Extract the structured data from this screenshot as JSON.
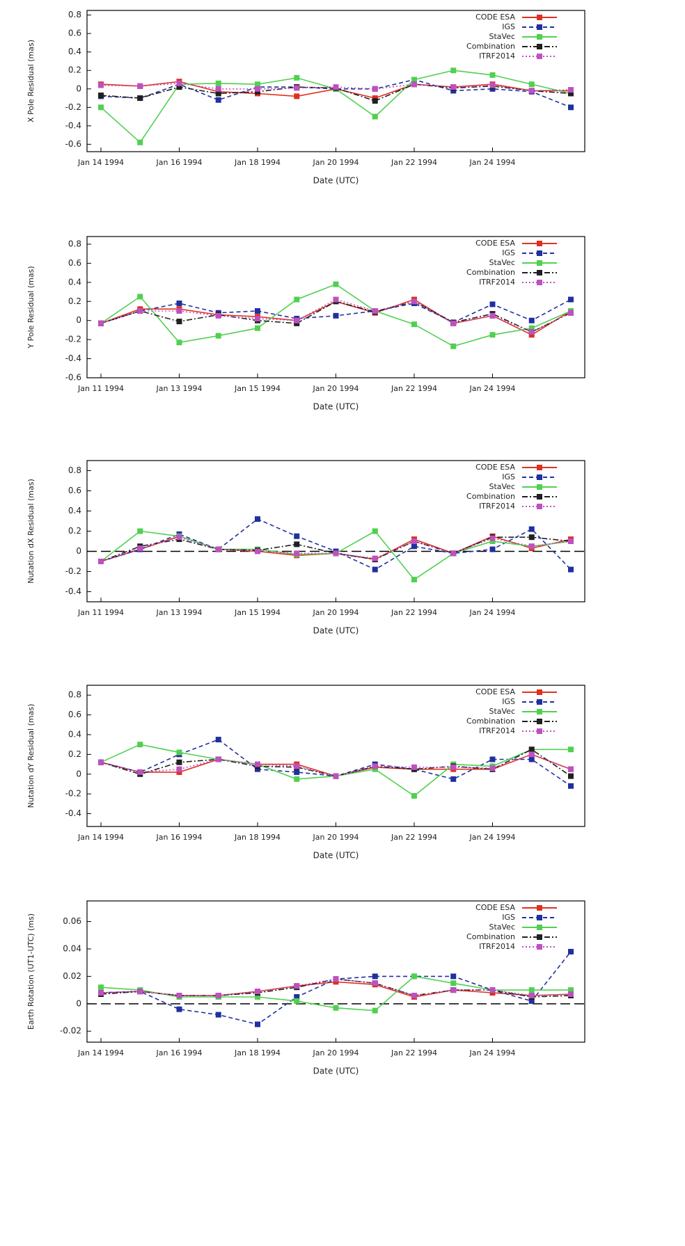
{
  "chart_data": [
    {
      "type": "line",
      "ylabel": "X Pole Residual (mas)",
      "xlabel": "Date (UTC)",
      "categories": [
        "Jan 14 1994",
        null,
        "Jan 16 1994",
        null,
        "Jan 18 1994",
        null,
        "Jan 20 1994",
        null,
        "Jan 22 1994",
        null,
        "Jan 24 1994",
        null,
        null
      ],
      "ylim": [
        -0.68,
        0.85
      ],
      "yticks": [
        -0.6,
        -0.4,
        -0.2,
        0,
        0.2,
        0.4,
        0.6,
        0.8
      ],
      "legend": "upper right",
      "zero_line": false,
      "series": [
        {
          "name": "CODE ESA",
          "color": "#e03020",
          "values": [
            0.05,
            0.03,
            0.08,
            -0.03,
            -0.05,
            -0.08,
            0,
            -0.1,
            0.05,
            0.02,
            0.05,
            -0.02,
            -0.02
          ]
        },
        {
          "name": "IGS",
          "color": "#2030a0",
          "values": [
            -0.08,
            -0.1,
            0.05,
            -0.12,
            0.02,
            0.02,
            0,
            0,
            0.1,
            -0.02,
            0,
            -0.03,
            -0.2
          ]
        },
        {
          "name": "StaVec",
          "color": "#50d050",
          "values": [
            -0.2,
            -0.58,
            0.05,
            0.06,
            0.05,
            0.12,
            0,
            -0.3,
            0.1,
            0.2,
            0.15,
            0.05,
            -0.05
          ]
        },
        {
          "name": "Combination",
          "color": "#202020",
          "values": [
            -0.07,
            -0.1,
            0.02,
            -0.05,
            -0.03,
            0.02,
            0.01,
            -0.13,
            0.05,
            0.01,
            0.03,
            -0.02,
            -0.05
          ]
        },
        {
          "name": "ITRF2014",
          "color": "#c050c0",
          "values": [
            0.04,
            0.03,
            0.06,
            0,
            0,
            0.01,
            0.02,
            0,
            0.05,
            0.02,
            0.04,
            -0.02,
            -0.01
          ]
        }
      ]
    },
    {
      "type": "line",
      "ylabel": "Y Pole Residual (mas)",
      "xlabel": "Date (UTC)",
      "categories": [
        "Jan 11 1994",
        null,
        "Jan 13 1994",
        null,
        "Jan 15 1994",
        null,
        "Jan 20 1994",
        null,
        "Jan 22 1994",
        null,
        "Jan 24 1994",
        null,
        null
      ],
      "ylim": [
        -0.6,
        0.88
      ],
      "yticks": [
        -0.6,
        -0.4,
        -0.2,
        0,
        0.2,
        0.4,
        0.6,
        0.8
      ],
      "legend": "upper right",
      "zero_line": false,
      "series": [
        {
          "name": "CODE ESA",
          "color": "#e03020",
          "values": [
            -0.03,
            0.12,
            0.12,
            0.06,
            0.04,
            0,
            0.2,
            0.08,
            0.22,
            -0.03,
            0.05,
            -0.15,
            0.1
          ]
        },
        {
          "name": "IGS",
          "color": "#2030a0",
          "values": [
            -0.03,
            0.1,
            0.18,
            0.08,
            0.1,
            0.02,
            0.05,
            0.1,
            0.18,
            -0.02,
            0.17,
            0,
            0.22
          ]
        },
        {
          "name": "StaVec",
          "color": "#50d050",
          "values": [
            -0.03,
            0.25,
            -0.23,
            -0.16,
            -0.08,
            0.22,
            0.38,
            0.1,
            -0.04,
            -0.27,
            -0.15,
            -0.08,
            0.1
          ]
        },
        {
          "name": "Combination",
          "color": "#202020",
          "values": [
            -0.03,
            0.1,
            -0.01,
            0.06,
            0,
            -0.03,
            0.2,
            0.09,
            0.2,
            -0.02,
            0.07,
            -0.12,
            0.08
          ]
        },
        {
          "name": "ITRF2014",
          "color": "#c050c0",
          "values": [
            -0.03,
            0.1,
            0.1,
            0.05,
            0.02,
            0,
            0.22,
            0.1,
            0.2,
            -0.03,
            0.05,
            -0.12,
            0.08
          ]
        }
      ]
    },
    {
      "type": "line",
      "ylabel": "Nutation dX Residual (mas)",
      "xlabel": "Date (UTC)",
      "categories": [
        "Jan 11 1994",
        null,
        "Jan 13 1994",
        null,
        "Jan 15 1994",
        null,
        "Jan 20 1994",
        null,
        "Jan 22 1994",
        null,
        "Jan 24 1994",
        null,
        null
      ],
      "ylim": [
        -0.5,
        0.9
      ],
      "yticks": [
        -0.4,
        -0.2,
        0,
        0.2,
        0.4,
        0.6,
        0.8
      ],
      "legend": "upper right",
      "zero_line": true,
      "series": [
        {
          "name": "CODE ESA",
          "color": "#e03020",
          "values": [
            -0.1,
            0.02,
            0.15,
            0.02,
            0,
            -0.04,
            -0.02,
            -0.08,
            0.12,
            -0.02,
            0.15,
            0.03,
            0.12
          ]
        },
        {
          "name": "IGS",
          "color": "#2030a0",
          "values": [
            -0.1,
            0.02,
            0.17,
            0.02,
            0.32,
            0.15,
            0,
            -0.18,
            0.05,
            -0.02,
            0.02,
            0.22,
            -0.18
          ]
        },
        {
          "name": "StaVec",
          "color": "#50d050",
          "values": [
            -0.1,
            0.2,
            0.15,
            0.02,
            0.02,
            -0.03,
            -0.02,
            0.2,
            -0.28,
            -0.02,
            0.1,
            0.05,
            0.1
          ]
        },
        {
          "name": "Combination",
          "color": "#202020",
          "values": [
            -0.1,
            0.05,
            0.12,
            0.02,
            0.01,
            0.07,
            -0.02,
            -0.08,
            0.1,
            -0.02,
            0.14,
            0.14,
            0.1
          ]
        },
        {
          "name": "ITRF2014",
          "color": "#c050c0",
          "values": [
            -0.1,
            0.03,
            0.14,
            0.02,
            0,
            -0.02,
            -0.02,
            -0.07,
            0.1,
            -0.02,
            0.13,
            0.05,
            0.1
          ]
        }
      ]
    },
    {
      "type": "line",
      "ylabel": "Nutation dY Residual (mas)",
      "xlabel": "Date (UTC)",
      "categories": [
        "Jan 14 1994",
        null,
        "Jan 16 1994",
        null,
        "Jan 18 1994",
        null,
        "Jan 20 1994",
        null,
        "Jan 22 1994",
        null,
        "Jan 24 1994",
        null,
        null
      ],
      "ylim": [
        -0.53,
        0.9
      ],
      "yticks": [
        -0.4,
        -0.2,
        0,
        0.2,
        0.4,
        0.6,
        0.8
      ],
      "legend": "upper right",
      "zero_line": false,
      "series": [
        {
          "name": "CODE ESA",
          "color": "#e03020",
          "values": [
            0.12,
            0.02,
            0.02,
            0.15,
            0.1,
            0.1,
            -0.02,
            0.07,
            0.05,
            0.05,
            0.05,
            0.2,
            0.05
          ]
        },
        {
          "name": "IGS",
          "color": "#2030a0",
          "values": [
            0.12,
            0.02,
            0.2,
            0.35,
            0.05,
            0.02,
            -0.02,
            0.1,
            0.05,
            -0.05,
            0.15,
            0.15,
            -0.12
          ]
        },
        {
          "name": "StaVec",
          "color": "#50d050",
          "values": [
            0.12,
            0.3,
            0.22,
            0.15,
            0.1,
            -0.05,
            -0.02,
            0.05,
            -0.22,
            0.1,
            0.08,
            0.25,
            0.25
          ]
        },
        {
          "name": "Combination",
          "color": "#202020",
          "values": [
            0.12,
            0,
            0.12,
            0.15,
            0.08,
            0.07,
            -0.02,
            0.08,
            0.05,
            0.08,
            0.05,
            0.25,
            -0.02
          ]
        },
        {
          "name": "ITRF2014",
          "color": "#c050c0",
          "values": [
            0.12,
            0.02,
            0.05,
            0.15,
            0.1,
            0.08,
            -0.02,
            0.08,
            0.07,
            0.07,
            0.06,
            0.2,
            0.05
          ]
        }
      ]
    },
    {
      "type": "line",
      "ylabel": "Earth Rotation (UT1-UTC) (ms)",
      "xlabel": "Date (UTC)",
      "categories": [
        "Jan 14 1994",
        null,
        "Jan 16 1994",
        null,
        "Jan 18 1994",
        null,
        "Jan 20 1994",
        null,
        "Jan 22 1994",
        null,
        "Jan 24 1994",
        null,
        null
      ],
      "ylim": [
        -0.028,
        0.075
      ],
      "yticks": [
        -0.02,
        0,
        0.02,
        0.04,
        0.06
      ],
      "legend": "upper right",
      "zero_line": true,
      "series": [
        {
          "name": "CODE ESA",
          "color": "#e03020",
          "values": [
            0.008,
            0.009,
            0.006,
            0.006,
            0.009,
            0.013,
            0.016,
            0.014,
            0.005,
            0.01,
            0.008,
            0.006,
            0.007
          ]
        },
        {
          "name": "IGS",
          "color": "#2030a0",
          "values": [
            0.008,
            0.009,
            -0.004,
            -0.008,
            -0.015,
            0.005,
            0.018,
            0.02,
            0.02,
            0.02,
            0.01,
            0.002,
            0.038
          ]
        },
        {
          "name": "StaVec",
          "color": "#50d050",
          "values": [
            0.012,
            0.01,
            0.005,
            0.005,
            0.005,
            0.002,
            -0.003,
            -0.005,
            0.02,
            0.015,
            0.01,
            0.01,
            0.01
          ]
        },
        {
          "name": "Combination",
          "color": "#202020",
          "values": [
            0.007,
            0.009,
            0.006,
            0.006,
            0.008,
            0.012,
            0.018,
            0.015,
            0.006,
            0.01,
            0.01,
            0.005,
            0.006
          ]
        },
        {
          "name": "ITRF2014",
          "color": "#c050c0",
          "values": [
            0.008,
            0.009,
            0.006,
            0.006,
            0.009,
            0.013,
            0.018,
            0.015,
            0.006,
            0.01,
            0.01,
            0.006,
            0.007
          ]
        }
      ]
    }
  ]
}
